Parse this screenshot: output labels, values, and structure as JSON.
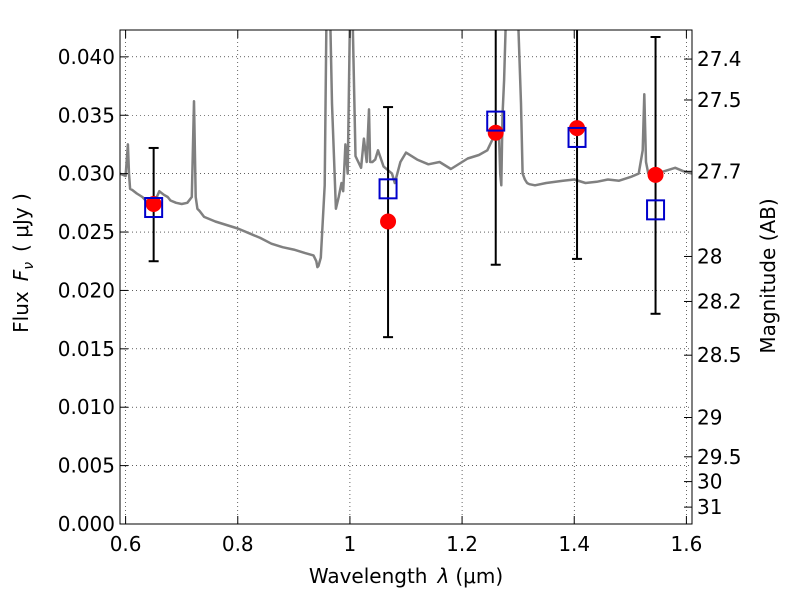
{
  "chart_data": {
    "type": "line",
    "xlabel_text": "Wavelength",
    "xlabel_sym": "λ",
    "xlabel_unit": "(μm)",
    "ylabel_text": "Flux",
    "ylabel_sym": "F",
    "ylabel_sub": "ν",
    "ylabel_unit": "( μJy )",
    "y2label": "Magnitude (AB)",
    "xlim": [
      0.59,
      1.61
    ],
    "ylim": [
      0.0,
      0.0423
    ],
    "grid": true,
    "x_ticks": [
      {
        "v": 0.6,
        "label": "0.6"
      },
      {
        "v": 0.8,
        "label": "0.8"
      },
      {
        "v": 1.0,
        "label": "1"
      },
      {
        "v": 1.2,
        "label": "1.2"
      },
      {
        "v": 1.4,
        "label": "1.4"
      },
      {
        "v": 1.6,
        "label": "1.6"
      }
    ],
    "y_ticks": [
      {
        "v": 0.0,
        "label": "0.000"
      },
      {
        "v": 0.005,
        "label": "0.005"
      },
      {
        "v": 0.01,
        "label": "0.010"
      },
      {
        "v": 0.015,
        "label": "0.015"
      },
      {
        "v": 0.02,
        "label": "0.020"
      },
      {
        "v": 0.025,
        "label": "0.025"
      },
      {
        "v": 0.03,
        "label": "0.030"
      },
      {
        "v": 0.035,
        "label": "0.035"
      },
      {
        "v": 0.04,
        "label": "0.040"
      }
    ],
    "y2_ticks": [
      {
        "mag": 27.4,
        "label": "27.4"
      },
      {
        "mag": 27.5,
        "label": "27.5"
      },
      {
        "mag": 27.7,
        "label": "27.7"
      },
      {
        "mag": 28.0,
        "label": "28"
      },
      {
        "mag": 28.2,
        "label": "28.2"
      },
      {
        "mag": 28.5,
        "label": "28.5"
      },
      {
        "mag": 29.0,
        "label": "29"
      },
      {
        "mag": 29.5,
        "label": "29.5"
      },
      {
        "mag": 30.0,
        "label": "30"
      },
      {
        "mag": 31.0,
        "label": "31"
      }
    ],
    "colors": {
      "spectrum": "#808080",
      "observed": "#ff0000",
      "model": "#0000cc",
      "errorbar": "#000000"
    },
    "series": [
      {
        "kind": "spectrum",
        "x": [
          0.59,
          0.6,
          0.604,
          0.606,
          0.608,
          0.612,
          0.62,
          0.63,
          0.638,
          0.645,
          0.652,
          0.66,
          0.668,
          0.675,
          0.68,
          0.69,
          0.7,
          0.71,
          0.718,
          0.722,
          0.725,
          0.728,
          0.732,
          0.74,
          0.76,
          0.78,
          0.8,
          0.82,
          0.84,
          0.86,
          0.88,
          0.9,
          0.92,
          0.935,
          0.94,
          0.942,
          0.944,
          0.948,
          0.955,
          0.958,
          0.962,
          0.965,
          0.968,
          0.975,
          0.98,
          0.985,
          0.988,
          0.992,
          0.996,
          1.0,
          1.005,
          1.01,
          1.015,
          1.02,
          1.025,
          1.03,
          1.034,
          1.036,
          1.04,
          1.045,
          1.05,
          1.06,
          1.075,
          1.08,
          1.09,
          1.1,
          1.12,
          1.14,
          1.16,
          1.18,
          1.2,
          1.21,
          1.23,
          1.245,
          1.255,
          1.262,
          1.266,
          1.268,
          1.27,
          1.272,
          1.275,
          1.278,
          1.282,
          1.29,
          1.3,
          1.305,
          1.308,
          1.312,
          1.316,
          1.32,
          1.33,
          1.35,
          1.38,
          1.4,
          1.42,
          1.44,
          1.46,
          1.48,
          1.5,
          1.515,
          1.522,
          1.525,
          1.528,
          1.532,
          1.54,
          1.56,
          1.58,
          1.595,
          1.61
        ],
        "y": [
          0.03,
          0.0298,
          0.0325,
          0.03,
          0.0287,
          0.0286,
          0.0283,
          0.028,
          0.0276,
          0.0277,
          0.0276,
          0.0285,
          0.0282,
          0.028,
          0.0277,
          0.0275,
          0.0274,
          0.0275,
          0.028,
          0.0362,
          0.028,
          0.027,
          0.0268,
          0.0263,
          0.0259,
          0.0256,
          0.0253,
          0.0249,
          0.0245,
          0.024,
          0.0237,
          0.0235,
          0.0232,
          0.023,
          0.0225,
          0.022,
          0.0221,
          0.0228,
          0.029,
          0.043,
          0.043,
          0.043,
          0.036,
          0.027,
          0.028,
          0.0292,
          0.0285,
          0.0325,
          0.03,
          0.043,
          0.043,
          0.0315,
          0.031,
          0.0305,
          0.033,
          0.031,
          0.0355,
          0.031,
          0.031,
          0.0312,
          0.032,
          0.0306,
          0.03,
          0.0292,
          0.031,
          0.0318,
          0.0312,
          0.0308,
          0.031,
          0.0304,
          0.031,
          0.0313,
          0.0316,
          0.032,
          0.033,
          0.034,
          0.033,
          0.03,
          0.029,
          0.035,
          0.038,
          0.043,
          0.043,
          0.043,
          0.043,
          0.036,
          0.03,
          0.0295,
          0.0292,
          0.0291,
          0.029,
          0.0292,
          0.0294,
          0.0295,
          0.0292,
          0.0293,
          0.0295,
          0.0294,
          0.0297,
          0.03,
          0.032,
          0.0368,
          0.031,
          0.03,
          0.03,
          0.0302,
          0.0305,
          0.0302,
          0.03
        ]
      },
      {
        "kind": "observed",
        "marker": "circle",
        "x": [
          0.65,
          1.068,
          1.26,
          1.405,
          1.545
        ],
        "y": [
          0.0274,
          0.0259,
          0.0335,
          0.0339,
          0.0299
        ],
        "err_low": [
          0.0049,
          0.0099,
          0.0113,
          0.0112,
          0.0119
        ],
        "err_high": [
          0.0048,
          0.0098,
          0.0166,
          0.0191,
          0.0118
        ]
      },
      {
        "kind": "model",
        "marker": "square",
        "x": [
          0.65,
          1.068,
          1.26,
          1.405,
          1.545
        ],
        "y": [
          0.0271,
          0.0287,
          0.0345,
          0.0331,
          0.0269
        ]
      }
    ]
  }
}
